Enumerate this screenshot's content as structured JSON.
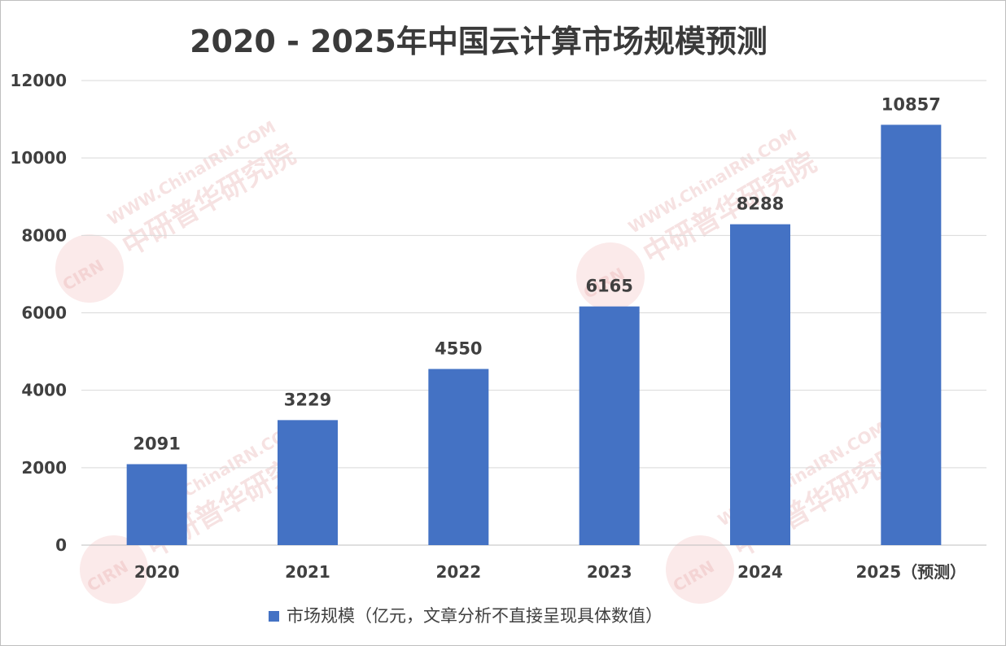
{
  "colors": {
    "bar": "#4472c4",
    "grid": "#d9d9d9",
    "text": "#404040",
    "watermark": "#e6a8a8"
  },
  "watermark": {
    "url": "WWW.ChinaIRN.COM",
    "name": "中研普华研究院",
    "logo": "CIRN"
  },
  "chart_data": {
    "type": "bar",
    "title": "2020 - 2025年中国云计算市场规模预测",
    "categories": [
      "2020",
      "2021",
      "2022",
      "2023",
      "2024",
      "2025（预测）"
    ],
    "series": [
      {
        "name": "市场规模（亿元，文章分析不直接呈现具体数值）",
        "values": [
          2091,
          3229,
          4550,
          6165,
          8288,
          10857
        ]
      }
    ],
    "ylim": [
      0,
      12000
    ],
    "yticks": [
      0,
      2000,
      4000,
      6000,
      8000,
      10000,
      12000
    ],
    "grid": true,
    "legend": "bottom",
    "data_labels": true
  }
}
